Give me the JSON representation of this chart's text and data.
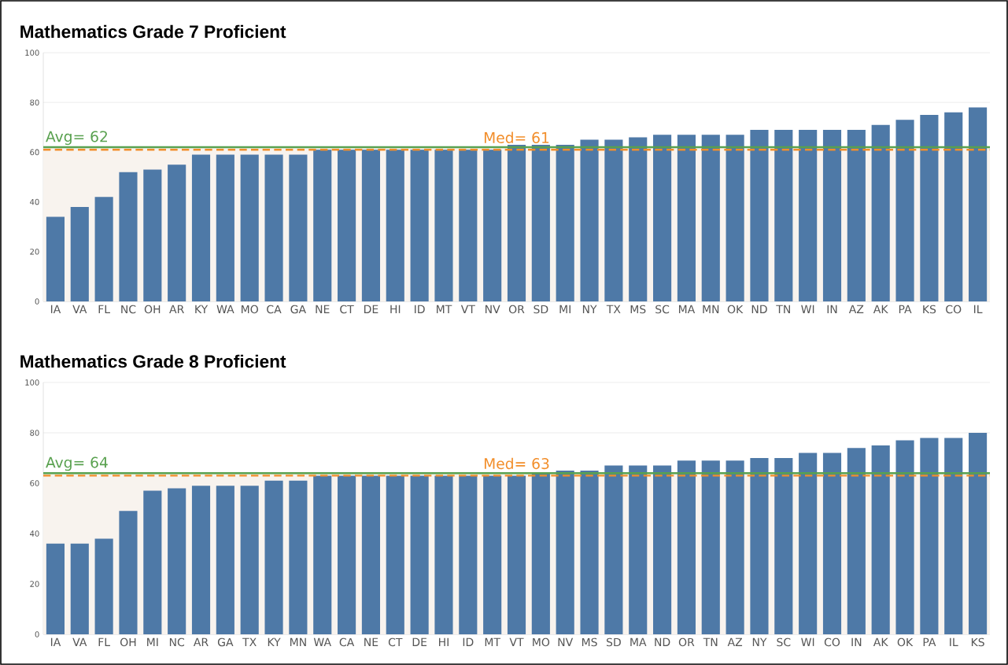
{
  "chart_data": [
    {
      "type": "bar",
      "title": "Mathematics Grade 7 Proficient",
      "categories": [
        "IA",
        "VA",
        "FL",
        "NC",
        "OH",
        "AR",
        "KY",
        "WA",
        "MO",
        "CA",
        "GA",
        "NE",
        "CT",
        "DE",
        "HI",
        "ID",
        "MT",
        "VT",
        "NV",
        "OR",
        "SD",
        "MI",
        "NY",
        "TX",
        "MS",
        "SC",
        "MA",
        "MN",
        "OK",
        "ND",
        "TN",
        "WI",
        "IN",
        "AZ",
        "AK",
        "PA",
        "KS",
        "CO",
        "IL"
      ],
      "values": [
        34,
        38,
        42,
        52,
        53,
        55,
        59,
        59,
        59,
        59,
        59,
        61,
        61,
        61,
        61,
        61,
        61,
        61,
        61,
        63,
        63,
        63,
        65,
        65,
        66,
        67,
        67,
        67,
        67,
        69,
        69,
        69,
        69,
        69,
        71,
        73,
        75,
        76,
        78
      ],
      "color": "#4e79a7",
      "ylim": [
        0,
        100
      ],
      "yticks": [
        0,
        20,
        40,
        60,
        80,
        100
      ],
      "grid": "y",
      "ref_lines": [
        {
          "axis": "y",
          "value": 62,
          "label": "Avg= 62",
          "color": "#59a14f",
          "line_style": "solid"
        },
        {
          "axis": "y",
          "value": 61,
          "label": "Med= 61",
          "color": "#f28e2b",
          "line_style": "dashed"
        }
      ],
      "bands": [
        {
          "axis": "y",
          "from": 0,
          "to": 62,
          "color": "#f8f3ee"
        }
      ]
    },
    {
      "type": "bar",
      "title": "Mathematics Grade 8 Proficient",
      "categories": [
        "IA",
        "VA",
        "FL",
        "OH",
        "MI",
        "NC",
        "AR",
        "GA",
        "TX",
        "KY",
        "MN",
        "WA",
        "CA",
        "NE",
        "CT",
        "DE",
        "HI",
        "ID",
        "MT",
        "VT",
        "MO",
        "NV",
        "MS",
        "SD",
        "MA",
        "ND",
        "OR",
        "TN",
        "AZ",
        "NY",
        "SC",
        "WI",
        "CO",
        "IN",
        "AK",
        "OK",
        "PA",
        "IL",
        "KS"
      ],
      "values": [
        36,
        36,
        38,
        49,
        57,
        58,
        59,
        59,
        59,
        61,
        61,
        63,
        63,
        63,
        63,
        63,
        63,
        63,
        63,
        63,
        64,
        65,
        65,
        67,
        67,
        67,
        69,
        69,
        69,
        70,
        70,
        72,
        72,
        74,
        75,
        77,
        78,
        78,
        80
      ],
      "color": "#4e79a7",
      "ylim": [
        0,
        100
      ],
      "yticks": [
        0,
        20,
        40,
        60,
        80,
        100
      ],
      "grid": "y",
      "ref_lines": [
        {
          "axis": "y",
          "value": 64,
          "label": "Avg= 64",
          "color": "#59a14f",
          "line_style": "solid"
        },
        {
          "axis": "y",
          "value": 63,
          "label": "Med= 63",
          "color": "#f28e2b",
          "line_style": "dashed"
        }
      ],
      "bands": [
        {
          "axis": "y",
          "from": 0,
          "to": 64,
          "color": "#f8f3ee"
        }
      ]
    }
  ]
}
